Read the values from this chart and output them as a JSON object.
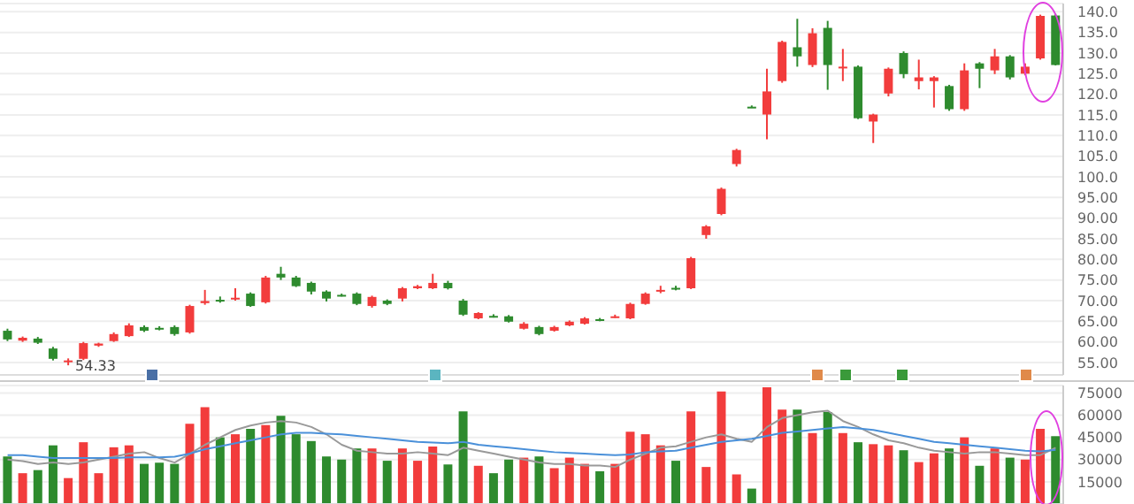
{
  "chart_data": [
    {
      "type": "candlestick",
      "categories": [
        null,
        null,
        null,
        null,
        null,
        null,
        null,
        null,
        null,
        null,
        null,
        null,
        null,
        null,
        null,
        null,
        null,
        null,
        null,
        null,
        null,
        null,
        null,
        null,
        null,
        null,
        null,
        null,
        null,
        null,
        null,
        null,
        null,
        null,
        null,
        null,
        null,
        null,
        null,
        null,
        null,
        null,
        null,
        null,
        null,
        null,
        null,
        null,
        null,
        null,
        null,
        null,
        null,
        null,
        null,
        null,
        null,
        null,
        null,
        null,
        null,
        null,
        null,
        null,
        null,
        null,
        null,
        null,
        null,
        null
      ],
      "ohlc": [
        [
          62.7,
          63.2,
          60.2,
          60.6
        ],
        [
          60.3,
          61.3,
          60.0,
          61.0
        ],
        [
          60.8,
          61.2,
          59.5,
          59.8
        ],
        [
          58.4,
          58.8,
          55.5,
          55.9
        ],
        [
          55.2,
          56.0,
          54.33,
          55.5
        ],
        [
          55.9,
          60.0,
          55.6,
          59.7
        ],
        [
          59.1,
          59.8,
          58.8,
          59.6
        ],
        [
          60.2,
          62.3,
          60.0,
          61.9
        ],
        [
          61.4,
          64.5,
          61.2,
          64.0
        ],
        [
          63.6,
          64.0,
          62.4,
          62.7
        ],
        [
          63.4,
          63.8,
          62.8,
          63.2
        ],
        [
          63.6,
          64.0,
          61.5,
          61.9
        ],
        [
          62.3,
          69.0,
          62.0,
          68.7
        ],
        [
          69.4,
          72.6,
          69.0,
          69.9
        ],
        [
          70.2,
          71.0,
          69.5,
          70.0
        ],
        [
          70.3,
          73.0,
          70.0,
          70.7
        ],
        [
          71.7,
          72.0,
          68.5,
          68.7
        ],
        [
          69.6,
          76.0,
          69.3,
          75.6
        ],
        [
          76.5,
          78.2,
          75.0,
          75.6
        ],
        [
          75.6,
          76.0,
          73.3,
          73.5
        ],
        [
          74.3,
          74.6,
          71.5,
          72.2
        ],
        [
          72.2,
          72.5,
          69.8,
          70.5
        ],
        [
          71.4,
          71.7,
          71.0,
          71.2
        ],
        [
          71.7,
          72.0,
          68.9,
          69.2
        ],
        [
          68.7,
          71.2,
          68.3,
          70.9
        ],
        [
          70.0,
          70.3,
          68.9,
          69.2
        ],
        [
          70.5,
          73.3,
          69.8,
          73.0
        ],
        [
          73.0,
          73.8,
          72.8,
          73.5
        ],
        [
          73.0,
          76.5,
          72.8,
          74.3
        ],
        [
          74.3,
          74.8,
          72.7,
          73.0
        ],
        [
          70.0,
          70.4,
          66.3,
          66.6
        ],
        [
          65.7,
          67.2,
          65.5,
          67.0
        ],
        [
          66.3,
          66.7,
          65.9,
          66.2
        ],
        [
          66.2,
          66.5,
          64.7,
          64.9
        ],
        [
          63.2,
          64.8,
          63.0,
          64.4
        ],
        [
          63.6,
          63.9,
          61.6,
          61.9
        ],
        [
          62.7,
          63.9,
          62.5,
          63.6
        ],
        [
          64.0,
          65.2,
          63.8,
          64.9
        ],
        [
          64.4,
          66.0,
          64.2,
          65.7
        ],
        [
          65.5,
          65.8,
          65.0,
          65.4
        ],
        [
          66.0,
          66.6,
          65.8,
          66.2
        ],
        [
          65.7,
          69.5,
          65.5,
          69.2
        ],
        [
          69.2,
          72.0,
          69.0,
          71.7
        ],
        [
          72.4,
          73.6,
          71.8,
          72.6
        ],
        [
          73.1,
          73.6,
          72.5,
          73.0
        ],
        [
          73.0,
          80.6,
          72.8,
          80.3
        ],
        [
          85.9,
          88.3,
          85.0,
          88.0
        ],
        [
          91.0,
          97.4,
          90.7,
          97.1
        ],
        [
          103.1,
          106.8,
          102.5,
          106.5
        ],
        [
          117.0,
          117.3,
          116.7,
          116.9
        ],
        [
          115.1,
          126.2,
          109.1,
          120.7
        ],
        [
          123.2,
          133.0,
          122.8,
          132.7
        ],
        [
          131.4,
          138.3,
          126.7,
          129.2
        ],
        [
          127.1,
          136.0,
          126.6,
          134.8
        ],
        [
          136.1,
          137.8,
          121.1,
          127.1
        ],
        [
          126.3,
          131.0,
          123.2,
          126.7
        ],
        [
          126.7,
          127.0,
          114.0,
          114.2
        ],
        [
          113.4,
          115.3,
          108.2,
          115.1
        ],
        [
          120.2,
          126.5,
          119.5,
          126.2
        ],
        [
          130.0,
          130.4,
          123.9,
          124.9
        ],
        [
          123.2,
          128.4,
          121.2,
          124.1
        ],
        [
          123.2,
          124.4,
          116.8,
          124.1
        ],
        [
          122.0,
          122.3,
          116.0,
          116.4
        ],
        [
          116.4,
          127.5,
          116.0,
          125.8
        ],
        [
          127.5,
          127.8,
          121.5,
          126.2
        ],
        [
          125.8,
          131.0,
          124.9,
          129.2
        ],
        [
          129.2,
          129.5,
          123.6,
          124.1
        ],
        [
          125.0,
          127.5,
          124.6,
          126.7
        ],
        [
          128.7,
          139.3,
          128.4,
          139.0
        ],
        [
          139.1,
          139.5,
          127.0,
          127.1
        ]
      ],
      "colors": [
        "#2e8b2e",
        "#f23c3c",
        "#2e8b2e",
        "#2e8b2e",
        "#f23c3c",
        "#f23c3c",
        "#f23c3c",
        "#f23c3c",
        "#f23c3c",
        "#2e8b2e",
        "#2e8b2e",
        "#2e8b2e",
        "#f23c3c",
        "#f23c3c",
        "#2e8b2e",
        "#f23c3c",
        "#2e8b2e",
        "#f23c3c",
        "#2e8b2e",
        "#2e8b2e",
        "#2e8b2e",
        "#2e8b2e",
        "#2e8b2e",
        "#2e8b2e",
        "#f23c3c",
        "#2e8b2e",
        "#f23c3c",
        "#f23c3c",
        "#f23c3c",
        "#2e8b2e",
        "#2e8b2e",
        "#f23c3c",
        "#2e8b2e",
        "#2e8b2e",
        "#f23c3c",
        "#2e8b2e",
        "#f23c3c",
        "#f23c3c",
        "#f23c3c",
        "#2e8b2e",
        "#f23c3c",
        "#f23c3c",
        "#f23c3c",
        "#f23c3c",
        "#2e8b2e",
        "#f23c3c",
        "#f23c3c",
        "#f23c3c",
        "#f23c3c",
        "#2e8b2e",
        "#f23c3c",
        "#f23c3c",
        "#2e8b2e",
        "#f23c3c",
        "#2e8b2e",
        "#f23c3c",
        "#2e8b2e",
        "#f23c3c",
        "#f23c3c",
        "#2e8b2e",
        "#f23c3c",
        "#f23c3c",
        "#2e8b2e",
        "#f23c3c",
        "#2e8b2e",
        "#f23c3c",
        "#2e8b2e",
        "#f23c3c",
        "#f23c3c",
        "#2e8b2e"
      ],
      "ylim": [
        52,
        142
      ],
      "yticks": [
        {
          "value": 55,
          "label": "55.00"
        },
        {
          "value": 60,
          "label": "60.00"
        },
        {
          "value": 65,
          "label": "65.00"
        },
        {
          "value": 70,
          "label": "70.00"
        },
        {
          "value": 75,
          "label": "75.00"
        },
        {
          "value": 80,
          "label": "80.00"
        },
        {
          "value": 85,
          "label": "85.00"
        },
        {
          "value": 90,
          "label": "90.00"
        },
        {
          "value": 95,
          "label": "95.00"
        },
        {
          "value": 100,
          "label": "100.0"
        },
        {
          "value": 105,
          "label": "105.0"
        },
        {
          "value": 110,
          "label": "110.0"
        },
        {
          "value": 115,
          "label": "115.0"
        },
        {
          "value": 120,
          "label": "120.0"
        },
        {
          "value": 125,
          "label": "125.0"
        },
        {
          "value": 130,
          "label": "130.0"
        },
        {
          "value": 135,
          "label": "135.0"
        },
        {
          "value": 140,
          "label": "140.0"
        }
      ],
      "annotations": [
        "54.33"
      ],
      "grid": "y",
      "tick_labels": "y"
    },
    {
      "type": "bar",
      "categories": [
        null,
        null,
        null,
        null,
        null,
        null,
        null,
        null,
        null,
        null,
        null,
        null,
        null,
        null,
        null,
        null,
        null,
        null,
        null,
        null,
        null,
        null,
        null,
        null,
        null,
        null,
        null,
        null,
        null,
        null,
        null,
        null,
        null,
        null,
        null,
        null,
        null,
        null,
        null,
        null,
        null,
        null,
        null,
        null,
        null,
        null,
        null,
        null,
        null,
        null,
        null,
        null,
        null,
        null,
        null,
        null,
        null,
        null,
        null,
        null,
        null,
        null,
        null,
        null,
        null,
        null,
        null,
        null,
        null,
        null
      ],
      "series": [
        {
          "type": "bar",
          "colors": [
            "#2e8b2e",
            "#f23c3c",
            "#2e8b2e",
            "#2e8b2e",
            "#f23c3c",
            "#f23c3c",
            "#f23c3c",
            "#f23c3c",
            "#f23c3c",
            "#2e8b2e",
            "#2e8b2e",
            "#2e8b2e",
            "#f23c3c",
            "#f23c3c",
            "#2e8b2e",
            "#f23c3c",
            "#2e8b2e",
            "#f23c3c",
            "#2e8b2e",
            "#2e8b2e",
            "#2e8b2e",
            "#2e8b2e",
            "#2e8b2e",
            "#2e8b2e",
            "#f23c3c",
            "#2e8b2e",
            "#f23c3c",
            "#f23c3c",
            "#f23c3c",
            "#2e8b2e",
            "#2e8b2e",
            "#f23c3c",
            "#2e8b2e",
            "#2e8b2e",
            "#f23c3c",
            "#2e8b2e",
            "#f23c3c",
            "#f23c3c",
            "#f23c3c",
            "#2e8b2e",
            "#f23c3c",
            "#f23c3c",
            "#f23c3c",
            "#f23c3c",
            "#2e8b2e",
            "#f23c3c",
            "#f23c3c",
            "#f23c3c",
            "#f23c3c",
            "#2e8b2e",
            "#f23c3c",
            "#f23c3c",
            "#2e8b2e",
            "#f23c3c",
            "#2e8b2e",
            "#f23c3c",
            "#2e8b2e",
            "#f23c3c",
            "#f23c3c",
            "#2e8b2e",
            "#f23c3c",
            "#f23c3c",
            "#2e8b2e",
            "#f23c3c",
            "#2e8b2e",
            "#f23c3c",
            "#2e8b2e",
            "#f23c3c",
            "#f23c3c",
            "#2e8b2e"
          ],
          "values": [
            32100,
            20800,
            22900,
            39600,
            17500,
            41700,
            20800,
            38300,
            39600,
            27100,
            27900,
            27100,
            54200,
            65400,
            45000,
            47100,
            50800,
            53300,
            59600,
            47100,
            42500,
            32100,
            30000,
            37500,
            37500,
            29200,
            37500,
            29200,
            38800,
            26700,
            62500,
            25800,
            20800,
            30000,
            31300,
            32100,
            24200,
            31300,
            27100,
            22100,
            27100,
            48800,
            47100,
            39600,
            29200,
            62500,
            25000,
            76000,
            20000,
            10400,
            78800,
            63800,
            63800,
            47900,
            62100,
            47900,
            41700,
            40400,
            39600,
            36300,
            28300,
            34200,
            37500,
            45000,
            25800,
            37500,
            31300,
            30000,
            50800,
            45800
          ]
        },
        {
          "type": "line",
          "color": "#999999",
          "values": [
            30000,
            29000,
            27000,
            28000,
            27000,
            28000,
            30000,
            32000,
            34000,
            35000,
            31000,
            28000,
            34000,
            40000,
            45000,
            50000,
            53000,
            55000,
            56000,
            55000,
            52000,
            47000,
            40000,
            36000,
            35000,
            34000,
            34000,
            35000,
            34000,
            33000,
            38000,
            36000,
            34000,
            32000,
            30000,
            28000,
            27000,
            27000,
            26000,
            26000,
            25000,
            30000,
            34000,
            38000,
            39000,
            42000,
            45000,
            47000,
            44000,
            42000,
            52000,
            58000,
            60000,
            62000,
            63000,
            56000,
            52000,
            47000,
            43000,
            41000,
            38000,
            36000,
            35000,
            34000,
            35000,
            35000,
            34000,
            33000,
            33000,
            38000
          ]
        },
        {
          "type": "line",
          "color": "#4a90d9",
          "values": [
            33000,
            33000,
            32000,
            31000,
            31000,
            31000,
            31000,
            31000,
            31500,
            31500,
            31500,
            32000,
            34000,
            37000,
            39000,
            41000,
            43000,
            45000,
            47000,
            48000,
            48000,
            47500,
            47000,
            46000,
            45000,
            44000,
            43000,
            42000,
            41500,
            41000,
            42000,
            40000,
            39000,
            38000,
            37000,
            36000,
            35000,
            34500,
            34000,
            33500,
            33000,
            33500,
            35000,
            35500,
            36000,
            38000,
            40000,
            42000,
            43000,
            44000,
            46000,
            48000,
            49000,
            50000,
            51000,
            52000,
            51000,
            50000,
            48000,
            46000,
            44000,
            42000,
            41000,
            40000,
            39000,
            38000,
            37000,
            36000,
            35500,
            36500
          ]
        }
      ],
      "ylim": [
        0,
        80000
      ],
      "yticks": [
        15000,
        30000,
        45000,
        60000,
        75000
      ],
      "grid": "y",
      "tick_labels": "y"
    }
  ]
}
